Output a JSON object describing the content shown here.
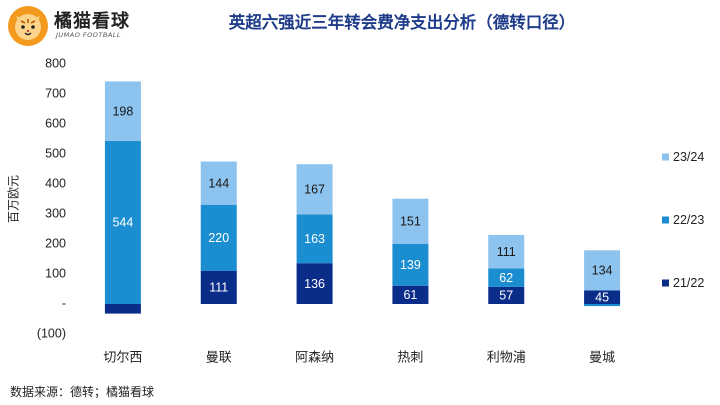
{
  "brand": {
    "name": "橘猫看球",
    "sub": "JUMAO FOOTBALL"
  },
  "title": "英超六强近三年转会费净支出分析（德转口径）",
  "footer": "数据来源：德转；橘猫看球",
  "colors": {
    "s2122": "#0b2d8a",
    "s2223": "#1b8ed1",
    "s2324": "#8cc3ef",
    "title": "#1f3c8a"
  },
  "chart_data": {
    "type": "bar",
    "stacked": true,
    "title": "英超六强近三年转会费净支出分析（德转口径）",
    "ylabel": "百万欧元",
    "xlabel": "",
    "ylim": [
      -100,
      800
    ],
    "yticks": [
      -100,
      0,
      100,
      200,
      300,
      400,
      500,
      600,
      700,
      800
    ],
    "ytick_labels": [
      "(100)",
      "-",
      "100",
      "200",
      "300",
      "400",
      "500",
      "600",
      "700",
      "800"
    ],
    "categories": [
      "切尔西",
      "曼联",
      "阿森纳",
      "热刺",
      "利物浦",
      "曼城"
    ],
    "series": [
      {
        "name": "21/22",
        "values": [
          -32,
          111,
          136,
          61,
          57,
          45
        ],
        "labels": [
          "",
          "111",
          "136",
          "61",
          "57",
          "45"
        ]
      },
      {
        "name": "22/23",
        "values": [
          544,
          220,
          163,
          139,
          62,
          -7
        ],
        "labels": [
          "544",
          "220",
          "163",
          "139",
          "62",
          ""
        ]
      },
      {
        "name": "23/24",
        "values": [
          198,
          144,
          167,
          151,
          111,
          134
        ],
        "labels": [
          "198",
          "144",
          "167",
          "151",
          "111",
          "134"
        ]
      }
    ],
    "legend": [
      "23/24",
      "22/23",
      "21/22"
    ],
    "legend_position": "right"
  }
}
